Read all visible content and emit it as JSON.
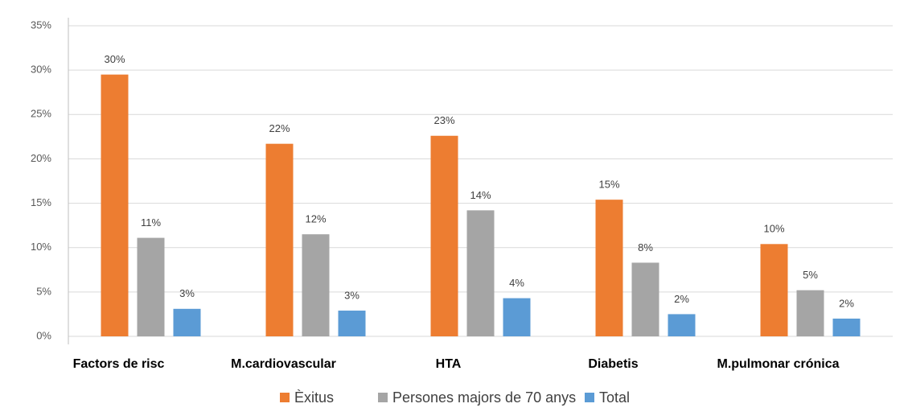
{
  "chart_data": {
    "type": "bar",
    "categories": [
      "Factors de risc",
      "M.cardiovascular",
      "HTA",
      "Diabetis",
      "M.pulmonar crónica"
    ],
    "series": [
      {
        "name": "Èxitus",
        "color": "#ed7d31",
        "values": [
          29.5,
          21.7,
          22.6,
          15.4,
          10.4
        ],
        "value_labels": [
          "30%",
          "22%",
          "23%",
          "15%",
          "10%"
        ]
      },
      {
        "name": "Persones majors de 70 anys",
        "color": "#a5a5a5",
        "values": [
          11.1,
          11.5,
          14.2,
          8.3,
          5.2
        ],
        "value_labels": [
          "11%",
          "12%",
          "14%",
          "8%",
          "5%"
        ]
      },
      {
        "name": "Total",
        "color": "#5b9bd5",
        "values": [
          3.1,
          2.9,
          4.3,
          2.5,
          2.0
        ],
        "value_labels": [
          "3%",
          "3%",
          "4%",
          "2%",
          "2%"
        ]
      }
    ],
    "ylim": [
      0,
      35
    ],
    "yticks": [
      {
        "value": 0,
        "label": "0%"
      },
      {
        "value": 5,
        "label": "5%"
      },
      {
        "value": 10,
        "label": "10%"
      },
      {
        "value": 15,
        "label": "15%"
      },
      {
        "value": 20,
        "label": "20%"
      },
      {
        "value": 25,
        "label": "25%"
      },
      {
        "value": 30,
        "label": "30%"
      },
      {
        "value": 35,
        "label": "35%"
      }
    ],
    "grid": true,
    "legend": "bottom"
  }
}
